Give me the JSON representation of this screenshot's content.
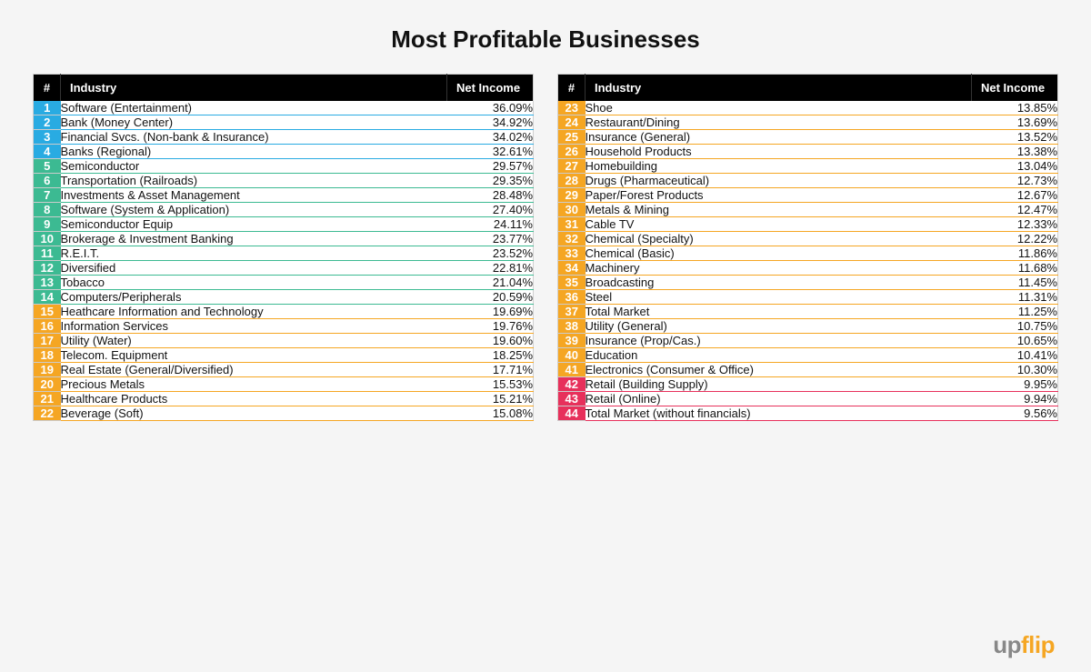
{
  "title": "Most Profitable Businesses",
  "headers": {
    "rank": "#",
    "industry": "Industry",
    "net": "Net Income"
  },
  "colors": {
    "blue": "#29abe2",
    "green": "#3cba92",
    "yellow": "#f5a623",
    "red": "#e7305b",
    "blue_border": "#29abe2",
    "green_border": "#3cba92",
    "yellow_border": "#f5a623",
    "red_border": "#e7305b"
  },
  "logo": {
    "prefix": "up",
    "suffix": "flip"
  },
  "left": [
    {
      "rank": "1",
      "industry": "Software (Entertainment)",
      "net": "36.09%",
      "tier": "blue"
    },
    {
      "rank": "2",
      "industry": "Bank (Money Center)",
      "net": "34.92%",
      "tier": "blue"
    },
    {
      "rank": "3",
      "industry": "Financial Svcs. (Non-bank & Insurance)",
      "net": "34.02%",
      "tier": "blue"
    },
    {
      "rank": "4",
      "industry": "Banks (Regional)",
      "net": "32.61%",
      "tier": "blue"
    },
    {
      "rank": "5",
      "industry": "Semiconductor",
      "net": "29.57%",
      "tier": "green"
    },
    {
      "rank": "6",
      "industry": "Transportation (Railroads)",
      "net": "29.35%",
      "tier": "green"
    },
    {
      "rank": "7",
      "industry": "Investments & Asset Management",
      "net": "28.48%",
      "tier": "green"
    },
    {
      "rank": "8",
      "industry": "Software (System & Application)",
      "net": "27.40%",
      "tier": "green"
    },
    {
      "rank": "9",
      "industry": "Semiconductor Equip",
      "net": "24.11%",
      "tier": "green"
    },
    {
      "rank": "10",
      "industry": "Brokerage & Investment Banking",
      "net": "23.77%",
      "tier": "green"
    },
    {
      "rank": "11",
      "industry": "R.E.I.T.",
      "net": "23.52%",
      "tier": "green"
    },
    {
      "rank": "12",
      "industry": "Diversified",
      "net": "22.81%",
      "tier": "green"
    },
    {
      "rank": "13",
      "industry": "Tobacco",
      "net": "21.04%",
      "tier": "green"
    },
    {
      "rank": "14",
      "industry": "Computers/Peripherals",
      "net": "20.59%",
      "tier": "green"
    },
    {
      "rank": "15",
      "industry": "Heathcare Information and Technology",
      "net": "19.69%",
      "tier": "yellow"
    },
    {
      "rank": "16",
      "industry": "Information Services",
      "net": "19.76%",
      "tier": "yellow"
    },
    {
      "rank": "17",
      "industry": "Utility (Water)",
      "net": "19.60%",
      "tier": "yellow"
    },
    {
      "rank": "18",
      "industry": "Telecom. Equipment",
      "net": "18.25%",
      "tier": "yellow"
    },
    {
      "rank": "19",
      "industry": "Real Estate (General/Diversified)",
      "net": "17.71%",
      "tier": "yellow"
    },
    {
      "rank": "20",
      "industry": "Precious Metals",
      "net": "15.53%",
      "tier": "yellow"
    },
    {
      "rank": "21",
      "industry": "Healthcare Products",
      "net": "15.21%",
      "tier": "yellow"
    },
    {
      "rank": "22",
      "industry": "Beverage (Soft)",
      "net": "15.08%",
      "tier": "yellow"
    }
  ],
  "right": [
    {
      "rank": "23",
      "industry": "Shoe",
      "net": "13.85%",
      "tier": "yellow"
    },
    {
      "rank": "24",
      "industry": "Restaurant/Dining",
      "net": "13.69%",
      "tier": "yellow"
    },
    {
      "rank": "25",
      "industry": "Insurance (General)",
      "net": "13.52%",
      "tier": "yellow"
    },
    {
      "rank": "26",
      "industry": "Household Products",
      "net": "13.38%",
      "tier": "yellow"
    },
    {
      "rank": "27",
      "industry": "Homebuilding",
      "net": "13.04%",
      "tier": "yellow"
    },
    {
      "rank": "28",
      "industry": "Drugs (Pharmaceutical)",
      "net": "12.73%",
      "tier": "yellow"
    },
    {
      "rank": "29",
      "industry": "Paper/Forest Products",
      "net": "12.67%",
      "tier": "yellow"
    },
    {
      "rank": "30",
      "industry": "Metals & Mining",
      "net": "12.47%",
      "tier": "yellow"
    },
    {
      "rank": "31",
      "industry": "Cable TV",
      "net": "12.33%",
      "tier": "yellow"
    },
    {
      "rank": "32",
      "industry": "Chemical (Specialty)",
      "net": "12.22%",
      "tier": "yellow"
    },
    {
      "rank": "33",
      "industry": "Chemical (Basic)",
      "net": "11.86%",
      "tier": "yellow"
    },
    {
      "rank": "34",
      "industry": "Machinery",
      "net": "11.68%",
      "tier": "yellow"
    },
    {
      "rank": "35",
      "industry": "Broadcasting",
      "net": "11.45%",
      "tier": "yellow"
    },
    {
      "rank": "36",
      "industry": "Steel",
      "net": "11.31%",
      "tier": "yellow"
    },
    {
      "rank": "37",
      "industry": "Total Market",
      "net": "11.25%",
      "tier": "yellow"
    },
    {
      "rank": "38",
      "industry": "Utility (General)",
      "net": "10.75%",
      "tier": "yellow"
    },
    {
      "rank": "39",
      "industry": "Insurance (Prop/Cas.)",
      "net": "10.65%",
      "tier": "yellow"
    },
    {
      "rank": "40",
      "industry": "Education",
      "net": "10.41%",
      "tier": "yellow"
    },
    {
      "rank": "41",
      "industry": "Electronics (Consumer & Office)",
      "net": "10.30%",
      "tier": "yellow"
    },
    {
      "rank": "42",
      "industry": "Retail (Building Supply)",
      "net": "9.95%",
      "tier": "red"
    },
    {
      "rank": "43",
      "industry": "Retail (Online)",
      "net": "9.94%",
      "tier": "red"
    },
    {
      "rank": "44",
      "industry": "Total Market (without financials)",
      "net": "9.56%",
      "tier": "red"
    }
  ]
}
